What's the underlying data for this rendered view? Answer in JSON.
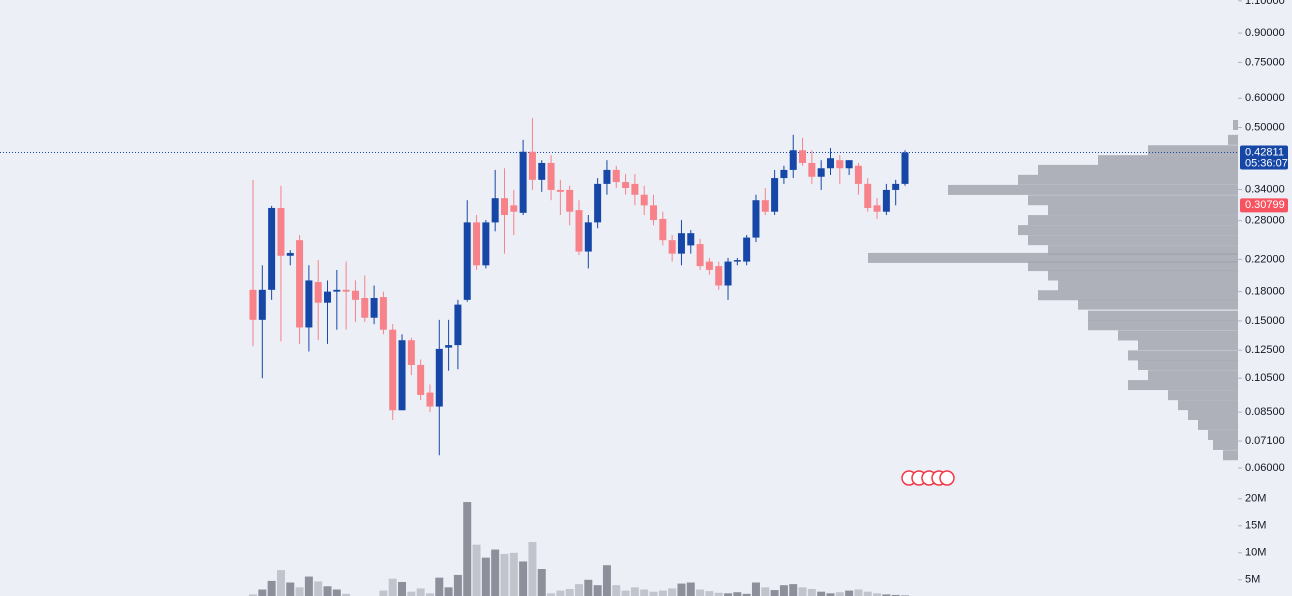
{
  "chart_data": [
    {
      "type": "candlestick",
      "log_scale": true,
      "up_color": "#1747a6",
      "down_color": "#f7828a",
      "ylim": [
        0.053,
        1.106
      ],
      "yticks": [
        {
          "value": 1.1,
          "label": "1.10000"
        },
        {
          "value": 0.9,
          "label": "0.90000"
        },
        {
          "value": 0.75,
          "label": "0.75000"
        },
        {
          "value": 0.6,
          "label": "0.60000"
        },
        {
          "value": 0.5,
          "label": "0.50000"
        },
        {
          "value": 0.34,
          "label": "0.34000"
        },
        {
          "value": 0.28,
          "label": "0.28000"
        },
        {
          "value": 0.22,
          "label": "0.22000"
        },
        {
          "value": 0.18,
          "label": "0.18000"
        },
        {
          "value": 0.15,
          "label": "0.15000"
        },
        {
          "value": 0.125,
          "label": "0.12500"
        },
        {
          "value": 0.105,
          "label": "0.10500"
        },
        {
          "value": 0.085,
          "label": "0.08500"
        },
        {
          "value": 0.071,
          "label": "0.07100"
        },
        {
          "value": 0.06,
          "label": "0.06000"
        }
      ],
      "open": [
        0.182,
        0.151,
        0.182,
        0.303,
        0.225,
        0.248,
        0.144,
        0.191,
        0.168,
        0.18,
        0.182,
        0.181,
        0.173,
        0.153,
        0.174,
        0.142,
        0.086,
        0.133,
        0.114,
        0.096,
        0.088,
        0.127,
        0.129,
        0.171,
        0.277,
        0.212,
        0.277,
        0.322,
        0.308,
        0.294,
        0.43,
        0.361,
        0.401,
        0.339,
        0.339,
        0.299,
        0.231,
        0.277,
        0.352,
        0.384,
        0.356,
        0.352,
        0.329,
        0.308,
        0.283,
        0.248,
        0.228,
        0.24,
        0.242,
        0.217,
        0.211,
        0.187,
        0.217,
        0.217,
        0.252,
        0.318,
        0.296,
        0.365,
        0.384,
        0.434,
        0.401,
        0.368,
        0.388,
        0.408,
        0.388,
        0.394,
        0.352,
        0.308,
        0.296,
        0.339,
        0.352
      ],
      "high": [
        0.361,
        0.212,
        0.307,
        0.348,
        0.233,
        0.256,
        0.212,
        0.219,
        0.193,
        0.206,
        0.217,
        0.193,
        0.199,
        0.187,
        0.18,
        0.147,
        0.138,
        0.135,
        0.118,
        0.101,
        0.151,
        0.151,
        0.171,
        0.318,
        0.29,
        0.281,
        0.384,
        0.388,
        0.339,
        0.463,
        0.53,
        0.408,
        0.421,
        0.361,
        0.348,
        0.318,
        0.29,
        0.365,
        0.408,
        0.394,
        0.374,
        0.374,
        0.348,
        0.329,
        0.296,
        0.256,
        0.281,
        0.264,
        0.25,
        0.222,
        0.217,
        0.222,
        0.222,
        0.256,
        0.329,
        0.343,
        0.384,
        0.394,
        0.478,
        0.469,
        0.434,
        0.408,
        0.44,
        0.421,
        0.408,
        0.401,
        0.365,
        0.322,
        0.352,
        0.361,
        0.434
      ],
      "low": [
        0.128,
        0.105,
        0.171,
        0.132,
        0.212,
        0.13,
        0.124,
        0.133,
        0.13,
        0.142,
        0.142,
        0.149,
        0.149,
        0.147,
        0.138,
        0.081,
        0.086,
        0.107,
        0.0916,
        0.085,
        0.065,
        0.11,
        0.111,
        0.169,
        0.206,
        0.208,
        0.262,
        0.228,
        0.256,
        0.29,
        0.339,
        0.335,
        0.318,
        0.29,
        0.272,
        0.226,
        0.208,
        0.267,
        0.329,
        0.343,
        0.329,
        0.308,
        0.29,
        0.272,
        0.24,
        0.217,
        0.212,
        0.228,
        0.206,
        0.2,
        0.182,
        0.171,
        0.212,
        0.212,
        0.245,
        0.29,
        0.29,
        0.352,
        0.365,
        0.394,
        0.352,
        0.339,
        0.372,
        0.352,
        0.372,
        0.329,
        0.296,
        0.283,
        0.29,
        0.308,
        0.348
      ],
      "close": [
        0.151,
        0.182,
        0.303,
        0.225,
        0.229,
        0.144,
        0.193,
        0.168,
        0.18,
        0.182,
        0.18,
        0.171,
        0.153,
        0.173,
        0.142,
        0.086,
        0.133,
        0.114,
        0.0946,
        0.088,
        0.126,
        0.129,
        0.166,
        0.277,
        0.212,
        0.277,
        0.322,
        0.29,
        0.296,
        0.43,
        0.361,
        0.401,
        0.339,
        0.335,
        0.296,
        0.231,
        0.277,
        0.352,
        0.384,
        0.356,
        0.343,
        0.329,
        0.308,
        0.281,
        0.248,
        0.228,
        0.259,
        0.259,
        0.211,
        0.206,
        0.187,
        0.217,
        0.219,
        0.252,
        0.318,
        0.296,
        0.365,
        0.384,
        0.434,
        0.401,
        0.368,
        0.388,
        0.413,
        0.388,
        0.408,
        0.352,
        0.303,
        0.296,
        0.339,
        0.352,
        0.42811
      ],
      "last_price": 0.42811,
      "countdown": "05:36:07",
      "marker_price": 0.30799,
      "marker_color": "#f7525f"
    },
    {
      "type": "volume",
      "up_color": "#8d909a",
      "down_color": "#c1c4cc",
      "ylim": [
        2000000,
        22000000
      ],
      "yticks": [
        {
          "value": 5000000,
          "label": "5M"
        },
        {
          "value": 10000000,
          "label": "10M"
        },
        {
          "value": 15000000,
          "label": "15M"
        },
        {
          "value": 20000000,
          "label": "20M"
        }
      ],
      "values": [
        2300000,
        3200000,
        4800000,
        6800000,
        4500000,
        3600000,
        5600000,
        4700000,
        3800000,
        3200000,
        2400000,
        1500000,
        1200000,
        1500000,
        3000000,
        5200000,
        4600000,
        2800000,
        3400000,
        2500000,
        5400000,
        3600000,
        5900000,
        19400000,
        11500000,
        9100000,
        10600000,
        9800000,
        10000000,
        8400000,
        12000000,
        7000000,
        2500000,
        3000000,
        3300000,
        4200000,
        5000000,
        4000000,
        7700000,
        4000000,
        3000000,
        3600000,
        3200000,
        2800000,
        3000000,
        3400000,
        4300000,
        4500000,
        3200000,
        2900000,
        2600000,
        2500000,
        2700000,
        2400000,
        4500000,
        3600000,
        3100000,
        4000000,
        4200000,
        3600000,
        3300000,
        2800000,
        2500000,
        2700000,
        3000000,
        3200000,
        2800000,
        2500000,
        2300000,
        2200000,
        2100000
      ]
    },
    {
      "type": "volume_profile",
      "color": "#a3a6af",
      "prices": [
        0.508,
        0.463,
        0.434,
        0.408,
        0.384,
        0.361,
        0.339,
        0.318,
        0.299,
        0.281,
        0.264,
        0.248,
        0.233,
        0.222,
        0.211,
        0.199,
        0.187,
        0.176,
        0.166,
        0.155,
        0.146,
        0.137,
        0.129,
        0.121,
        0.114,
        0.107,
        0.1006,
        0.0945,
        0.0888,
        0.0835,
        0.0785,
        0.0737,
        0.0693,
        0.065
      ],
      "values": [
        5,
        10,
        90,
        140,
        200,
        220,
        290,
        210,
        190,
        210,
        220,
        210,
        190,
        370,
        210,
        190,
        180,
        200,
        160,
        150,
        150,
        120,
        100,
        110,
        100,
        90,
        110,
        70,
        60,
        50,
        40,
        30,
        25,
        15
      ]
    }
  ]
}
